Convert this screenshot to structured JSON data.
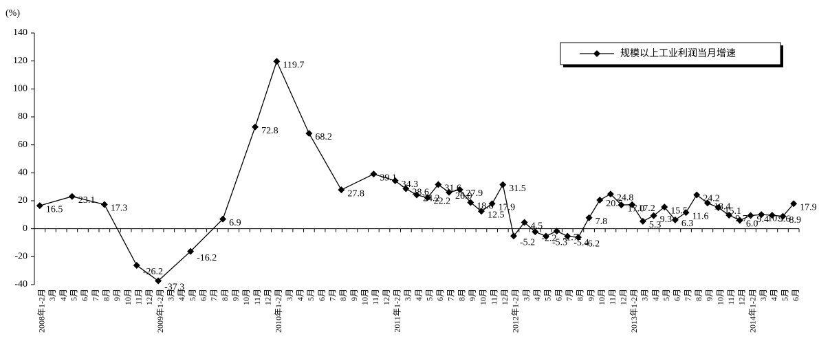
{
  "chart_data": {
    "type": "line",
    "y_label": "(%)",
    "categories": [
      "2008年1-2月",
      "3月",
      "4月",
      "5月",
      "6月",
      "7月",
      "8月",
      "9月",
      "10月",
      "11月",
      "12月",
      "2009年1-2月",
      "3月",
      "4月",
      "5月",
      "6月",
      "7月",
      "8月",
      "9月",
      "10月",
      "11月",
      "12月",
      "2010年1-2月",
      "3月",
      "4月",
      "5月",
      "6月",
      "7月",
      "8月",
      "9月",
      "10月",
      "11月",
      "12月",
      "2011年1-2月",
      "3月",
      "4月",
      "5月",
      "6月",
      "7月",
      "8月",
      "9月",
      "10月",
      "11月",
      "12月",
      "2012年1-2月",
      "3月",
      "4月",
      "5月",
      "6月",
      "7月",
      "8月",
      "9月",
      "10月",
      "11月",
      "12月",
      "2013年1-2月",
      "3月",
      "4月",
      "5月",
      "6月",
      "7月",
      "8月",
      "9月",
      "10月",
      "11月",
      "12月",
      "2014年1-2月",
      "3月",
      "4月",
      "5月",
      "6月"
    ],
    "series": [
      {
        "name": "规模以上工业利润当月增速",
        "color": "#000000",
        "values": [
          16.5,
          null,
          null,
          23.1,
          null,
          null,
          17.3,
          null,
          null,
          -26.2,
          null,
          -37.3,
          null,
          null,
          -16.2,
          null,
          null,
          6.9,
          null,
          null,
          72.8,
          null,
          119.7,
          null,
          null,
          68.2,
          null,
          null,
          27.8,
          null,
          null,
          39.1,
          null,
          34.3,
          28.6,
          24.2,
          22.2,
          31.6,
          26.0,
          27.9,
          18.8,
          12.5,
          17.9,
          31.5,
          -5.2,
          4.5,
          -2.2,
          -5.3,
          -1.7,
          -5.4,
          -6.2,
          7.8,
          20.5,
          24.8,
          17.0,
          17.2,
          5.3,
          9.3,
          15.5,
          6.3,
          11.6,
          24.2,
          18.4,
          15.1,
          9.7,
          6.0,
          9.4,
          10.1,
          9.6,
          8.9,
          17.9
        ],
        "value_labels": [
          "16.5",
          null,
          null,
          "23.1",
          null,
          null,
          "17.3",
          null,
          null,
          "-26.2",
          null,
          "-37.3",
          null,
          null,
          "-16.2",
          null,
          null,
          "6.9",
          null,
          null,
          "72.8",
          null,
          "119.7",
          null,
          null,
          "68.2",
          null,
          null,
          "27.8",
          null,
          null,
          "39.1",
          null,
          "34.3",
          "28.6",
          "24.2",
          "22.2",
          "31.6",
          "26.0",
          "27.9",
          "18.8",
          "12.5",
          "17.9",
          "31.5",
          "-5.2",
          "4.5",
          "-2.2",
          "-5.3",
          "-1.7",
          "-5.4",
          "-6.2",
          "7.8",
          "20.5",
          "24.8",
          "17.0",
          "17.2",
          "5.3",
          "9.3",
          "15.5",
          "6.3",
          "11.6",
          "24.2",
          "18.4",
          "15.1",
          "9.7",
          "6.0",
          "9.4",
          "10.1",
          "9.6",
          "8.9",
          "17.9"
        ]
      }
    ],
    "ylim": [
      -40,
      140
    ],
    "yticks": [
      -40,
      -20,
      0,
      20,
      40,
      60,
      80,
      100,
      120,
      140
    ],
    "legend": "upper right"
  }
}
